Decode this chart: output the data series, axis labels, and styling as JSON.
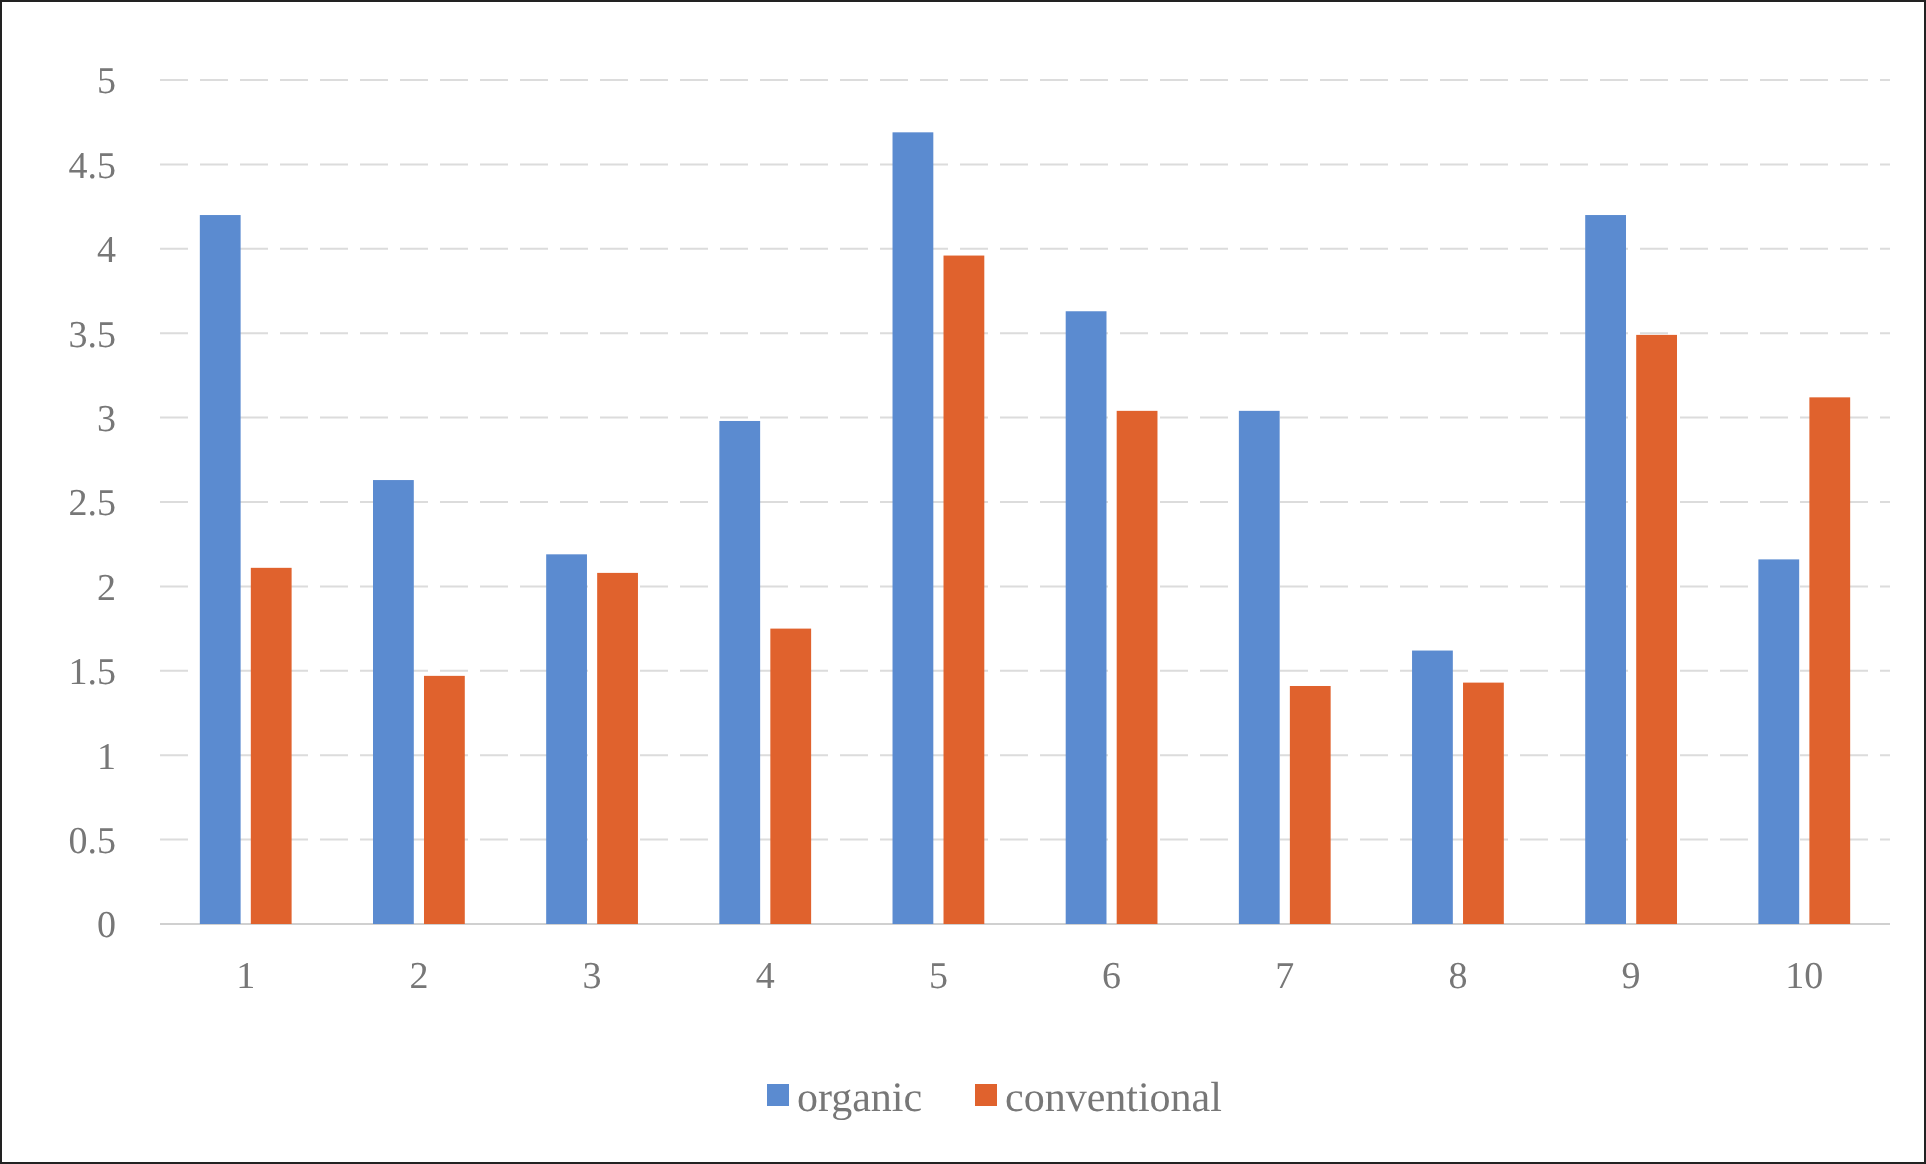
{
  "chart_data": {
    "type": "bar",
    "categories": [
      "1",
      "2",
      "3",
      "4",
      "5",
      "6",
      "7",
      "8",
      "9",
      "10"
    ],
    "series": [
      {
        "name": "organic",
        "color": "#5b8bd0",
        "values": [
          4.2,
          2.63,
          2.19,
          2.98,
          4.69,
          3.63,
          3.04,
          1.62,
          4.2,
          2.16
        ]
      },
      {
        "name": "conventional",
        "color": "#e0622d",
        "values": [
          2.11,
          1.47,
          2.08,
          1.75,
          3.96,
          3.04,
          1.41,
          1.43,
          3.49,
          3.12
        ]
      }
    ],
    "ylim": [
      0,
      5
    ],
    "yticks": [
      0,
      0.5,
      1,
      1.5,
      2,
      2.5,
      3,
      3.5,
      4,
      4.5,
      5
    ],
    "grid": "y",
    "legend": "bottom"
  }
}
